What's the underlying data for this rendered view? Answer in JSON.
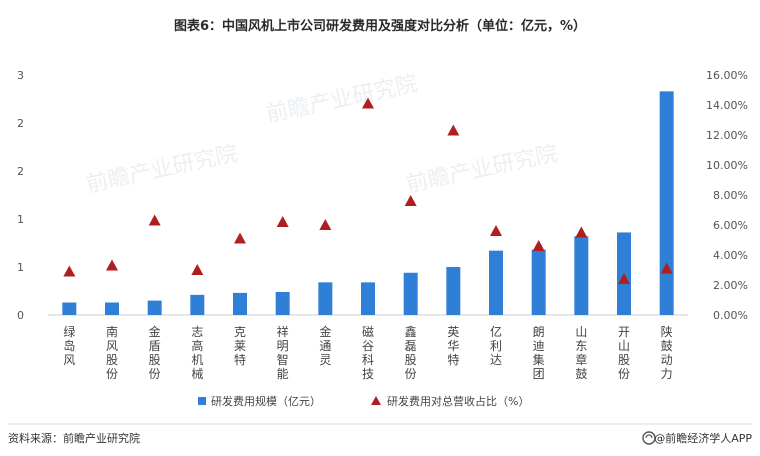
{
  "chart_data": {
    "type": "bar",
    "title": "图表6：中国风机上市公司研发费用及强度对比分析（单位：亿元，%）",
    "categories": [
      "绿岛风",
      "南风股份",
      "金盾股份",
      "志高机械",
      "克莱特",
      "祥明智能",
      "金通灵",
      "磁谷科技",
      "鑫磊股份",
      "英华特",
      "亿利达",
      "朗迪集团",
      "山东章鼓",
      "开山股份",
      "陕鼓动力"
    ],
    "series": [
      {
        "name": "研发费用规模（亿元）",
        "kind": "bar",
        "axis": "left",
        "color": "#2f7fd6",
        "values": [
          0.13,
          0.13,
          0.15,
          0.21,
          0.23,
          0.24,
          0.34,
          0.34,
          0.44,
          0.5,
          0.67,
          0.68,
          0.82,
          0.86,
          2.33
        ]
      },
      {
        "name": "研发费用对总营收占比（%）",
        "kind": "marker",
        "axis": "right",
        "color": "#b01f1f",
        "values": [
          2.9,
          3.3,
          6.3,
          3.0,
          5.1,
          6.2,
          6.0,
          14.1,
          7.6,
          12.3,
          5.6,
          4.6,
          5.5,
          2.4,
          3.1
        ]
      }
    ],
    "y_left": {
      "ticks": [
        "0",
        "1",
        "1",
        "2",
        "2",
        "3"
      ],
      "ylim": [
        0,
        2.5
      ]
    },
    "y_right": {
      "ticks": [
        "0.00%",
        "2.00%",
        "4.00%",
        "6.00%",
        "8.00%",
        "10.00%",
        "12.00%",
        "14.00%",
        "16.00%"
      ],
      "ylim": [
        0,
        16
      ]
    },
    "legend_placement": "bottom-center"
  },
  "footer": {
    "source": "资料来源：前瞻产业研究院",
    "brand": "@前瞻经济学人APP"
  },
  "watermark": "前瞻产业研究院",
  "brand_icon": "qianzhan-logo-icon",
  "colors": {
    "bar": "#2f7fd6",
    "marker": "#b01f1f",
    "axis": "#cccccc"
  }
}
